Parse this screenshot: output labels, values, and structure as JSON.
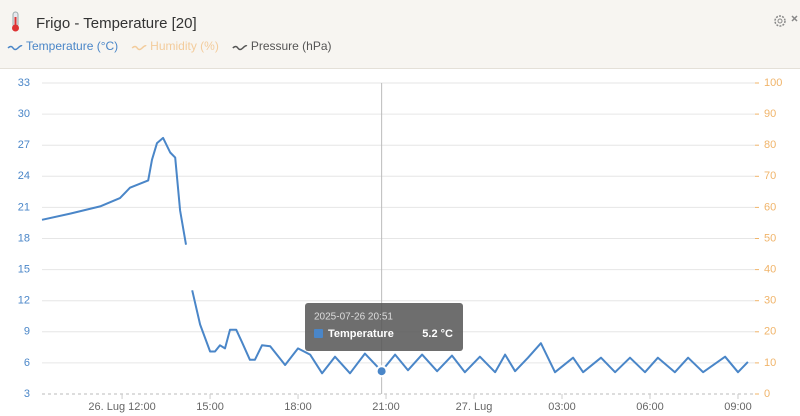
{
  "header": {
    "title": "Frigo - Temperature [20]"
  },
  "chart_data": {
    "type": "line",
    "legend": [
      {
        "name": "Temperature (°C)",
        "color": "#4a86c8"
      },
      {
        "name": "Humidity (%)",
        "color": "#f3cc9c"
      },
      {
        "name": "Pressure (hPa)",
        "color": "#555555"
      }
    ],
    "x": [
      9.27,
      10.23,
      11.25,
      11.93,
      12.27,
      12.89,
      13.02,
      13.19,
      13.4,
      13.64,
      13.81,
      13.98,
      14.18,
      14.3,
      14.39,
      14.66,
      15.0,
      15.17,
      15.34,
      15.51,
      15.68,
      15.89,
      16.09,
      16.36,
      16.53,
      16.77,
      17.05,
      17.56,
      18.0,
      18.41,
      18.82,
      19.26,
      19.77,
      20.28,
      20.85,
      21.31,
      21.75,
      22.23,
      22.74,
      23.25,
      23.69,
      24.2,
      24.72,
      25.06,
      25.4,
      25.84,
      26.28,
      26.76,
      27.38,
      27.72,
      28.33,
      28.81,
      29.32,
      29.83,
      30.27,
      30.85,
      31.3,
      31.81,
      32.56,
      33.0,
      33.34
    ],
    "series": [
      {
        "name": "Temperature",
        "color": "#4a86c8",
        "values": [
          19.8,
          20.4,
          21.1,
          21.9,
          22.9,
          23.6,
          25.6,
          27.2,
          27.7,
          26.3,
          25.8,
          20.7,
          17.4,
          null,
          13.0,
          9.7,
          7.1,
          7.1,
          7.7,
          7.4,
          9.2,
          9.2,
          8.0,
          6.3,
          6.3,
          7.7,
          7.6,
          5.8,
          7.4,
          6.8,
          5.0,
          6.6,
          5.0,
          6.9,
          5.2,
          6.8,
          5.3,
          6.8,
          5.2,
          6.7,
          5.1,
          6.6,
          5.1,
          6.8,
          5.2,
          6.5,
          7.9,
          5.1,
          6.5,
          5.1,
          6.5,
          5.1,
          6.5,
          5.1,
          6.5,
          5.1,
          6.5,
          5.1,
          6.6,
          5.1,
          6.1
        ]
      }
    ],
    "xlim": [
      9.27,
      33.41
    ],
    "xticks": [
      {
        "value": 12,
        "label": "26. Lug 12:00"
      },
      {
        "value": 15,
        "label": "15:00"
      },
      {
        "value": 18,
        "label": "18:00"
      },
      {
        "value": 21,
        "label": "21:00"
      },
      {
        "value": 24,
        "label": "27. Lug"
      },
      {
        "value": 27,
        "label": "03:00"
      },
      {
        "value": 30,
        "label": "06:00"
      },
      {
        "value": 33,
        "label": "09:00"
      }
    ],
    "ylim": [
      3,
      33
    ],
    "yticks": [
      3,
      6,
      9,
      12,
      15,
      18,
      21,
      24,
      27,
      30,
      33
    ],
    "y2lim": [
      0,
      100
    ],
    "y2ticks": [
      0,
      10,
      20,
      30,
      40,
      50,
      60,
      70,
      80,
      90,
      100
    ],
    "y2color": "#f0b46a",
    "grid": true,
    "tooltip": {
      "x": 20.85,
      "title": "2025-07-26 20:51",
      "series": "Temperature",
      "value": 5.2,
      "value_label": "5.2 °C"
    }
  }
}
